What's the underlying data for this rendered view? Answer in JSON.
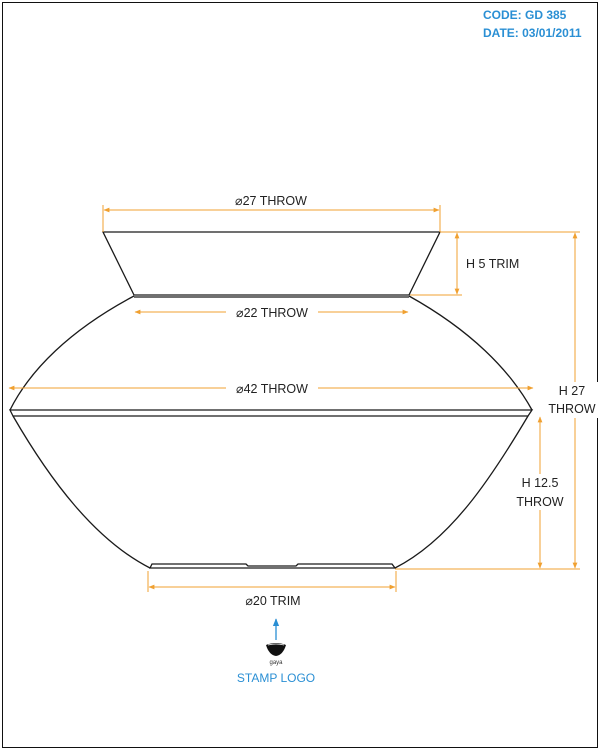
{
  "colors": {
    "outline": "#1a1a1a",
    "dimension": "#f0a030",
    "meta_text": "#2a8fd4",
    "stamp_label": "#2a8fd4",
    "arrow": "#2a8fd4"
  },
  "header": {
    "code": "CODE: GD 385",
    "date": "DATE: 03/01/2011"
  },
  "dimensions": {
    "top_diameter": "⌀27 THROW",
    "neck_diameter": "⌀22 THROW",
    "widest_diameter": "⌀42 THROW",
    "base_diameter": "⌀20 TRIM",
    "collar_height": "H 5 TRIM",
    "total_height_line1": "H 27",
    "total_height_line2": "THROW",
    "lower_height_line1": "H 12.5",
    "lower_height_line2": "THROW"
  },
  "stamp": {
    "brand": "gaya",
    "label": "STAMP LOGO",
    "icon": "bowl-stamp-icon"
  }
}
